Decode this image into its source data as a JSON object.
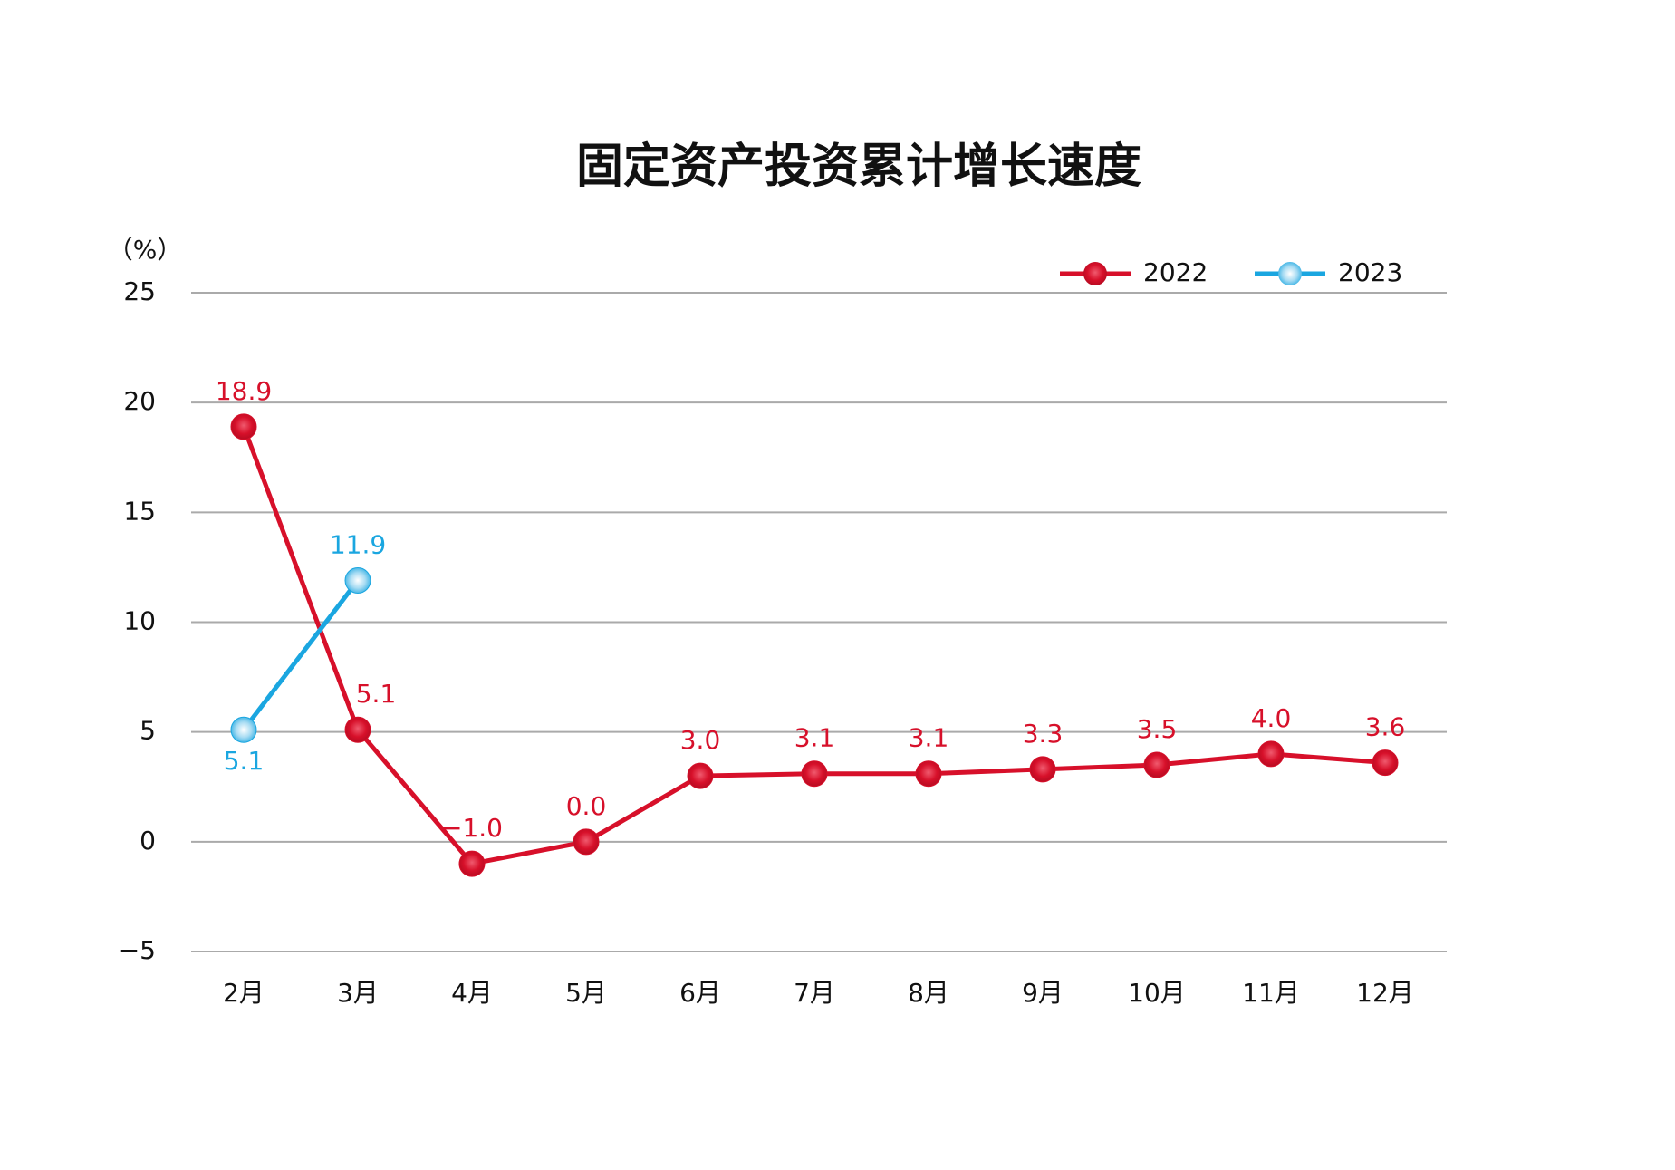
{
  "chart_data": {
    "type": "line",
    "title": "固定资产投资累计增长速度",
    "y_label": "（%）",
    "categories": [
      "2月",
      "3月",
      "4月",
      "5月",
      "6月",
      "7月",
      "8月",
      "9月",
      "10月",
      "11月",
      "12月"
    ],
    "series": [
      {
        "name": "2022",
        "color": "#d7102a",
        "values": [
          18.9,
          5.1,
          -1.0,
          0.0,
          3.0,
          3.1,
          3.1,
          3.3,
          3.5,
          4.0,
          3.6
        ],
        "value_labels": [
          "18.9",
          "5.1",
          "−1.0",
          "0.0",
          "3.0",
          "3.1",
          "3.1",
          "3.3",
          "3.5",
          "4.0",
          "3.6"
        ]
      },
      {
        "name": "2023",
        "color": "#1aa6e0",
        "values": [
          5.1,
          11.9,
          null,
          null,
          null,
          null,
          null,
          null,
          null,
          null,
          null
        ],
        "value_labels": [
          "5.1",
          "11.9",
          null,
          null,
          null,
          null,
          null,
          null,
          null,
          null,
          null
        ]
      }
    ],
    "ylim": [
      -5,
      25
    ],
    "yticks": [
      {
        "value": -5,
        "label": "−5"
      },
      0,
      5,
      10,
      15,
      20,
      25
    ],
    "grid": true,
    "legend": "top-right"
  }
}
